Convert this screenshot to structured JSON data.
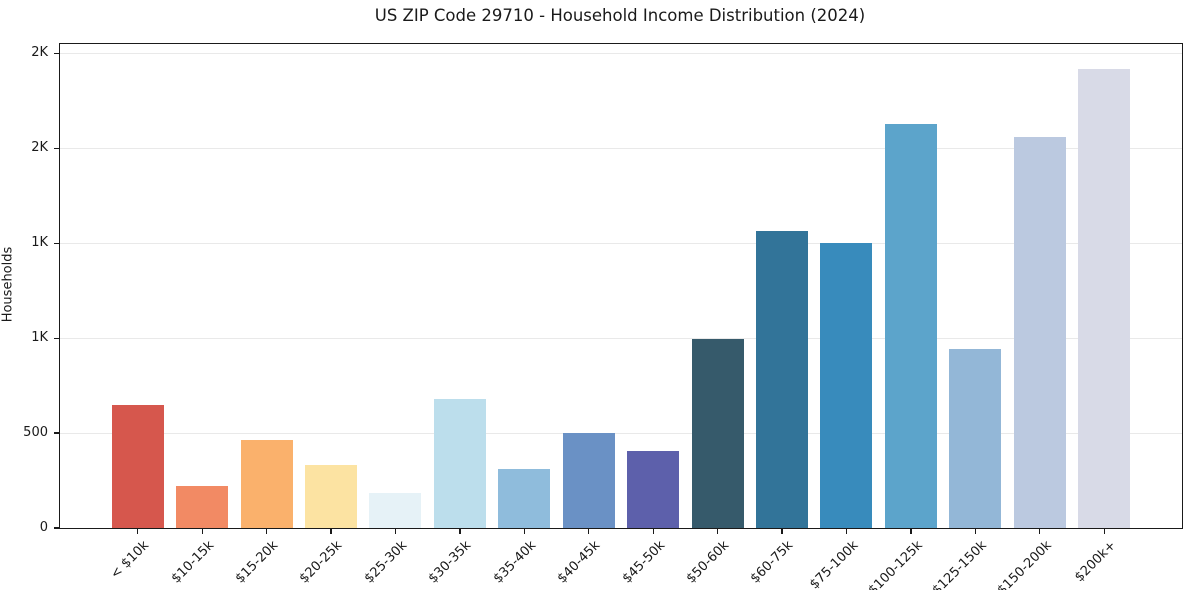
{
  "chart_data": {
    "type": "bar",
    "title": "US ZIP Code 29710 - Household Income Distribution (2024)",
    "xlabel": "",
    "ylabel": "Households",
    "categories": [
      "< $10k",
      "$10-15k",
      "$15-20k",
      "$20-25k",
      "$25-30k",
      "$30-35k",
      "$35-40k",
      "$40-45k",
      "$45-50k",
      "$50-60k",
      "$60-75k",
      "$75-100k",
      "$100-125k",
      "$125-150k",
      "$150-200k",
      "$200k+"
    ],
    "values": [
      650,
      221,
      464,
      332,
      186,
      680,
      313,
      503,
      407,
      995,
      1566,
      1504,
      2128,
      942,
      2061,
      2419
    ],
    "bar_colors": [
      "#d6574d",
      "#f28a64",
      "#fab16c",
      "#fce3a2",
      "#e6f2f7",
      "#bcdeec",
      "#8fbcdc",
      "#6a91c5",
      "#5d60ab",
      "#365a6b",
      "#327499",
      "#388bbc",
      "#5ca4cb",
      "#93b7d7",
      "#bbc9e0",
      "#d8dae7"
    ],
    "ylim": [
      0,
      2550
    ],
    "yticks": {
      "values": [
        0,
        500,
        1000,
        1500,
        2000,
        2500
      ],
      "labels": [
        "0",
        "500",
        "1K",
        "1K",
        "2K",
        "2K"
      ]
    },
    "grid": "horizontal",
    "gridline_color": "#e9e9e9",
    "legend": "none",
    "x_tick_rotation_deg": 45
  }
}
